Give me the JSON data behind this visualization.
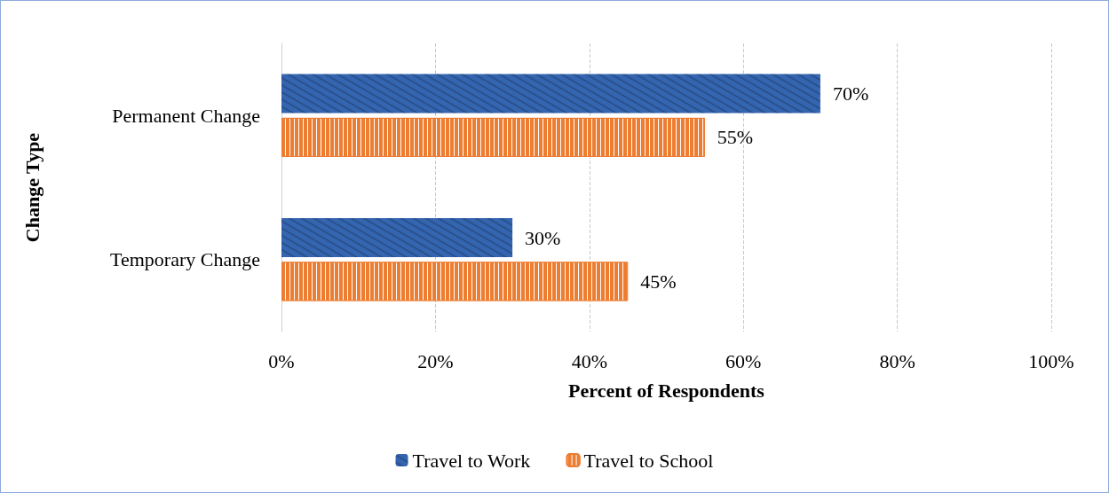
{
  "chart_data": {
    "type": "bar",
    "orientation": "horizontal",
    "xlabel": "Percent of Respondents",
    "ylabel": "Change Type",
    "categories": [
      "Permanent Change",
      "Temporary Change"
    ],
    "series": [
      {
        "name": "Travel to Work",
        "color": "#3465b0",
        "values": [
          70,
          30
        ],
        "value_labels": [
          "70%",
          "30%"
        ]
      },
      {
        "name": "Travel to School",
        "color": "#ed7d31",
        "values": [
          55,
          45
        ],
        "value_labels": [
          "55%",
          "45%"
        ]
      }
    ],
    "xlim": [
      0,
      100
    ],
    "xticks": [
      {
        "value": 0,
        "label": "0%"
      },
      {
        "value": 20,
        "label": "20%"
      },
      {
        "value": 40,
        "label": "40%"
      },
      {
        "value": 60,
        "label": "60%"
      },
      {
        "value": 80,
        "label": "80%"
      },
      {
        "value": 100,
        "label": "100%"
      }
    ],
    "grid": "x",
    "legend": "bottom"
  }
}
